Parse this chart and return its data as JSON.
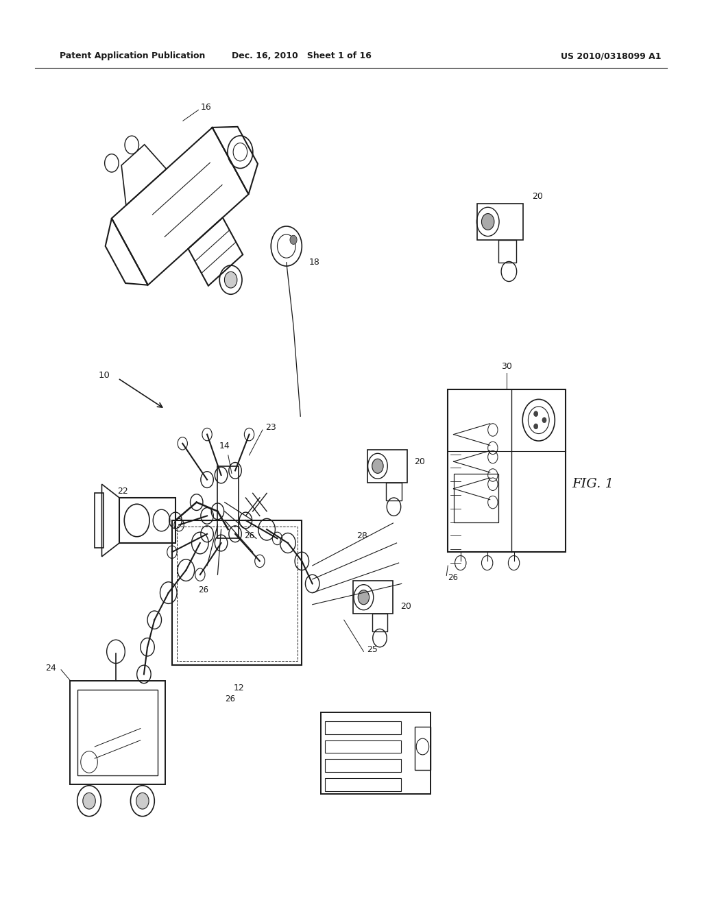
{
  "header_left": "Patent Application Publication",
  "header_mid": "Dec. 16, 2010   Sheet 1 of 16",
  "header_right": "US 2010/0318099 A1",
  "fig_label": "FIG. 1",
  "background_color": "#ffffff",
  "line_color": "#1a1a1a",
  "header_fontsize": 9,
  "fig_fontsize": 14,
  "label_fontsize": 8.5
}
